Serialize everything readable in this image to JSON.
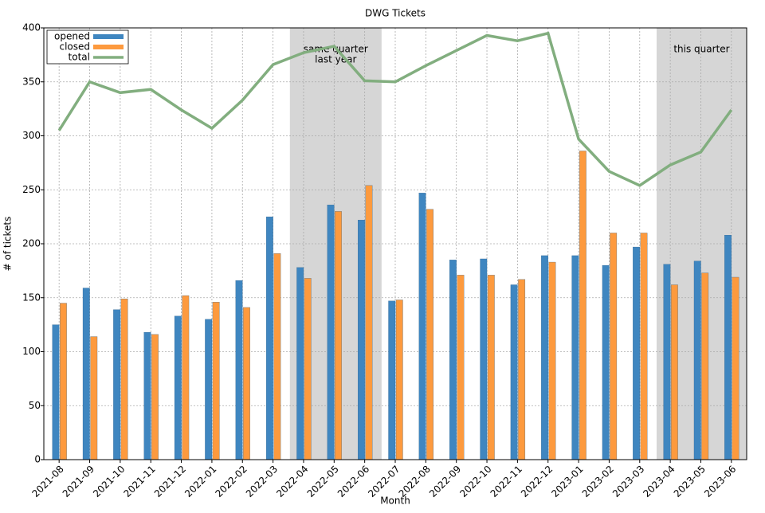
{
  "chart_data": {
    "type": "bar-line",
    "title": "DWG Tickets",
    "x_label": "Month",
    "y_label": "# of tickets",
    "categories": [
      "2021-08",
      "2021-09",
      "2021-10",
      "2021-11",
      "2021-12",
      "2022-01",
      "2022-02",
      "2022-03",
      "2022-04",
      "2022-05",
      "2022-06",
      "2022-07",
      "2022-08",
      "2022-09",
      "2022-10",
      "2022-11",
      "2022-12",
      "2023-01",
      "2023-02",
      "2023-03",
      "2023-04",
      "2023-05",
      "2023-06"
    ],
    "series": [
      {
        "name": "opened",
        "type": "bar",
        "color": "#3f86c0",
        "values": [
          125,
          159,
          139,
          118,
          133,
          130,
          166,
          225,
          178,
          236,
          222,
          147,
          247,
          185,
          186,
          162,
          189,
          189,
          180,
          197,
          181,
          184,
          208
        ]
      },
      {
        "name": "closed",
        "type": "bar",
        "color": "#fd9a3e",
        "values": [
          145,
          114,
          149,
          116,
          152,
          146,
          141,
          191,
          168,
          230,
          254,
          148,
          232,
          171,
          171,
          167,
          183,
          286,
          210,
          210,
          162,
          173,
          169
        ]
      },
      {
        "name": "total",
        "type": "line",
        "color": "#82ae7f",
        "values": [
          305,
          350,
          340,
          343,
          324,
          307,
          333,
          366,
          377,
          383,
          351,
          350,
          365,
          379,
          393,
          388,
          395,
          297,
          267,
          254,
          273,
          285,
          324
        ]
      }
    ],
    "spans": [
      {
        "from": "2022-04",
        "to": "2022-06",
        "lines": [
          "same quarter",
          "last year"
        ]
      },
      {
        "from": "2023-04",
        "to": "2023-06",
        "lines": [
          "this quarter"
        ]
      }
    ],
    "ylim": [
      0,
      400
    ],
    "yticks": [
      0,
      50,
      100,
      150,
      200,
      250,
      300,
      350,
      400
    ],
    "grid": true,
    "legend": "upper-left"
  }
}
